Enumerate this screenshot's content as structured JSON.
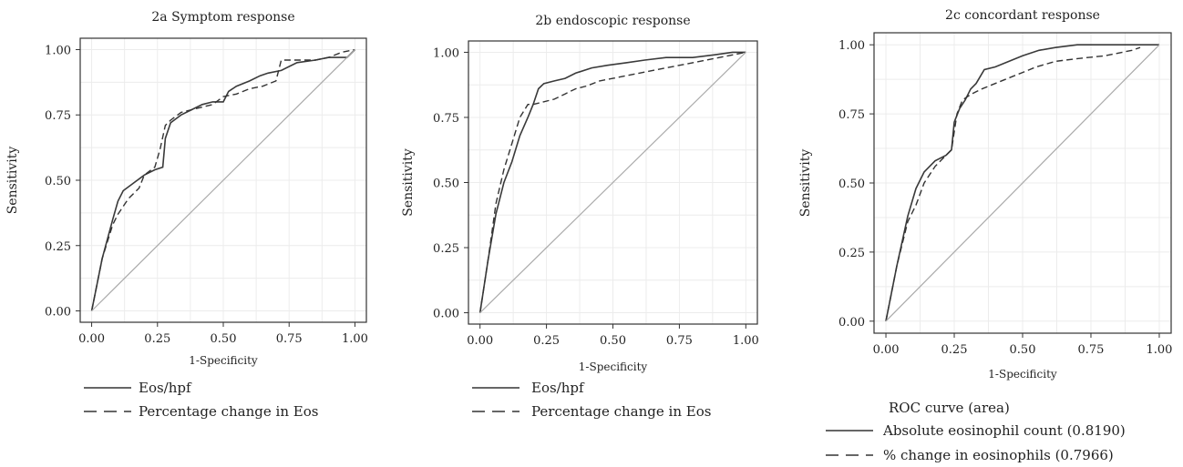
{
  "chart_data": [
    {
      "type": "line",
      "title": "2a Symptom response",
      "xlabel": "1-Specificity",
      "ylabel": "Sensitivity",
      "xlim": [
        0,
        1
      ],
      "ylim": [
        0,
        1
      ],
      "xticks": [
        "0.00",
        "0.25",
        "0.50",
        "0.75",
        "1.00"
      ],
      "yticks": [
        "0.00",
        "0.25",
        "0.50",
        "0.75",
        "1.00"
      ],
      "grid": true,
      "legend_title": "",
      "series": [
        {
          "name": "Eos/hpf",
          "style": "solid",
          "x": [
            0,
            0.04,
            0.08,
            0.1,
            0.12,
            0.16,
            0.2,
            0.24,
            0.27,
            0.28,
            0.3,
            0.34,
            0.38,
            0.42,
            0.46,
            0.5,
            0.52,
            0.55,
            0.6,
            0.64,
            0.67,
            0.72,
            0.78,
            0.85,
            0.9,
            0.95,
            0.97,
            1.0
          ],
          "y": [
            0,
            0.2,
            0.35,
            0.42,
            0.46,
            0.49,
            0.52,
            0.54,
            0.55,
            0.66,
            0.72,
            0.75,
            0.77,
            0.79,
            0.8,
            0.8,
            0.84,
            0.86,
            0.88,
            0.9,
            0.91,
            0.92,
            0.95,
            0.96,
            0.97,
            0.97,
            0.97,
            1.0
          ]
        },
        {
          "name": "Percentage change in Eos",
          "style": "dashed",
          "x": [
            0,
            0.04,
            0.08,
            0.1,
            0.12,
            0.14,
            0.16,
            0.18,
            0.2,
            0.24,
            0.26,
            0.28,
            0.3,
            0.34,
            0.38,
            0.42,
            0.46,
            0.5,
            0.55,
            0.6,
            0.65,
            0.7,
            0.72,
            0.8,
            0.85,
            0.9,
            0.95,
            1.0
          ],
          "y": [
            0,
            0.2,
            0.33,
            0.37,
            0.4,
            0.43,
            0.45,
            0.47,
            0.52,
            0.55,
            0.62,
            0.71,
            0.73,
            0.76,
            0.77,
            0.78,
            0.79,
            0.82,
            0.83,
            0.85,
            0.86,
            0.88,
            0.96,
            0.96,
            0.96,
            0.97,
            0.99,
            1.0
          ]
        },
        {
          "name": "",
          "style": "reference",
          "x": [
            0,
            1
          ],
          "y": [
            0,
            1
          ]
        }
      ]
    },
    {
      "type": "line",
      "title": "2b endoscopic response",
      "xlabel": "1-Specificity",
      "ylabel": "Sensitivity",
      "xlim": [
        0,
        1
      ],
      "ylim": [
        0,
        1
      ],
      "xticks": [
        "0.00",
        "0.25",
        "0.50",
        "0.75",
        "1.00"
      ],
      "yticks": [
        "0.00",
        "0.25",
        "0.50",
        "0.75",
        "1.00"
      ],
      "grid": true,
      "legend_title": "",
      "series": [
        {
          "name": "Eos/hpf",
          "style": "solid",
          "x": [
            0,
            0.03,
            0.06,
            0.09,
            0.12,
            0.15,
            0.18,
            0.2,
            0.22,
            0.24,
            0.28,
            0.32,
            0.36,
            0.42,
            0.48,
            0.55,
            0.62,
            0.7,
            0.8,
            0.88,
            0.95,
            1.0
          ],
          "y": [
            0,
            0.2,
            0.38,
            0.5,
            0.58,
            0.68,
            0.75,
            0.8,
            0.86,
            0.88,
            0.89,
            0.9,
            0.92,
            0.94,
            0.95,
            0.96,
            0.97,
            0.98,
            0.98,
            0.99,
            1.0,
            1.0
          ]
        },
        {
          "name": "Percentage change in Eos",
          "style": "dashed",
          "x": [
            0,
            0.03,
            0.06,
            0.09,
            0.12,
            0.15,
            0.18,
            0.2,
            0.24,
            0.28,
            0.32,
            0.36,
            0.4,
            0.45,
            0.5,
            0.6,
            0.7,
            0.8,
            0.9,
            0.95,
            1.0
          ],
          "y": [
            0,
            0.2,
            0.42,
            0.55,
            0.65,
            0.75,
            0.8,
            0.8,
            0.81,
            0.82,
            0.84,
            0.86,
            0.87,
            0.89,
            0.9,
            0.92,
            0.94,
            0.96,
            0.98,
            0.99,
            1.0
          ]
        },
        {
          "name": "",
          "style": "reference",
          "x": [
            0,
            1
          ],
          "y": [
            0,
            1
          ]
        }
      ]
    },
    {
      "type": "line",
      "title": "2c concordant response",
      "xlabel": "1-Specificity",
      "ylabel": "Sensitivity",
      "xlim": [
        0,
        1
      ],
      "ylim": [
        0,
        1
      ],
      "xticks": [
        "0.00",
        "0.25",
        "0.50",
        "0.75",
        "1.00"
      ],
      "yticks": [
        "0.00",
        "0.25",
        "0.50",
        "0.75",
        "1.00"
      ],
      "grid": true,
      "legend_title": "ROC curve (area)",
      "series": [
        {
          "name": "Absolute eosinophil count (0.8190)",
          "style": "solid",
          "x": [
            0,
            0.04,
            0.08,
            0.11,
            0.14,
            0.18,
            0.22,
            0.24,
            0.25,
            0.27,
            0.29,
            0.31,
            0.33,
            0.36,
            0.4,
            0.45,
            0.5,
            0.56,
            0.62,
            0.7,
            0.8,
            0.9,
            1.0
          ],
          "y": [
            0,
            0.2,
            0.38,
            0.48,
            0.54,
            0.58,
            0.6,
            0.62,
            0.72,
            0.77,
            0.8,
            0.84,
            0.86,
            0.91,
            0.92,
            0.94,
            0.96,
            0.98,
            0.99,
            1.0,
            1.0,
            1.0,
            1.0
          ]
        },
        {
          "name": "% change in eosinophils (0.7966)",
          "style": "dashed",
          "x": [
            0,
            0.04,
            0.08,
            0.11,
            0.14,
            0.18,
            0.22,
            0.24,
            0.26,
            0.28,
            0.31,
            0.35,
            0.4,
            0.45,
            0.5,
            0.55,
            0.62,
            0.7,
            0.8,
            0.9,
            0.93
          ],
          "y": [
            0,
            0.2,
            0.36,
            0.42,
            0.5,
            0.56,
            0.6,
            0.62,
            0.75,
            0.8,
            0.82,
            0.84,
            0.86,
            0.88,
            0.9,
            0.92,
            0.94,
            0.95,
            0.96,
            0.98,
            0.99
          ]
        },
        {
          "name": "",
          "style": "reference",
          "x": [
            0,
            1
          ],
          "y": [
            0,
            1
          ]
        }
      ]
    }
  ]
}
